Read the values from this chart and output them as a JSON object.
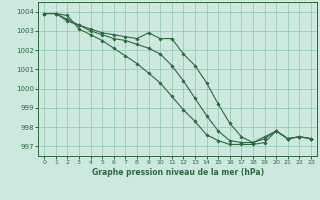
{
  "xlabel": "Graphe pression niveau de la mer (hPa)",
  "background_color": "#cce8df",
  "grid_color": "#99ccbb",
  "line_color": "#2d6a3f",
  "ylim": [
    996.5,
    1004.5
  ],
  "xlim": [
    -0.5,
    23.5
  ],
  "yticks": [
    997,
    998,
    999,
    1000,
    1001,
    1002,
    1003,
    1004
  ],
  "xticks": [
    0,
    1,
    2,
    3,
    4,
    5,
    6,
    7,
    8,
    9,
    10,
    11,
    12,
    13,
    14,
    15,
    16,
    17,
    18,
    19,
    20,
    21,
    22,
    23
  ],
  "series": [
    [
      1003.9,
      1003.9,
      1003.8,
      1003.1,
      1002.8,
      1002.5,
      1002.1,
      1001.7,
      1001.3,
      1000.8,
      1000.3,
      999.6,
      998.9,
      998.3,
      997.6,
      997.3,
      997.1,
      997.1,
      997.1,
      997.2,
      997.8,
      997.4,
      997.5,
      997.4
    ],
    [
      1003.9,
      1003.9,
      1003.6,
      1003.3,
      1003.1,
      1002.9,
      1002.8,
      1002.7,
      1002.6,
      1002.9,
      1002.6,
      1002.6,
      1001.8,
      1001.2,
      1000.3,
      999.2,
      998.2,
      997.5,
      997.2,
      997.4,
      997.8,
      997.4,
      997.5,
      997.4
    ],
    [
      1003.9,
      1003.9,
      1003.5,
      1003.3,
      1003.0,
      1002.8,
      1002.6,
      1002.5,
      1002.3,
      1002.1,
      1001.8,
      1001.2,
      1000.4,
      999.5,
      998.6,
      997.8,
      997.3,
      997.2,
      997.2,
      997.5,
      997.8,
      997.4,
      997.5,
      997.4
    ]
  ],
  "figsize": [
    3.2,
    2.0
  ],
  "dpi": 100
}
